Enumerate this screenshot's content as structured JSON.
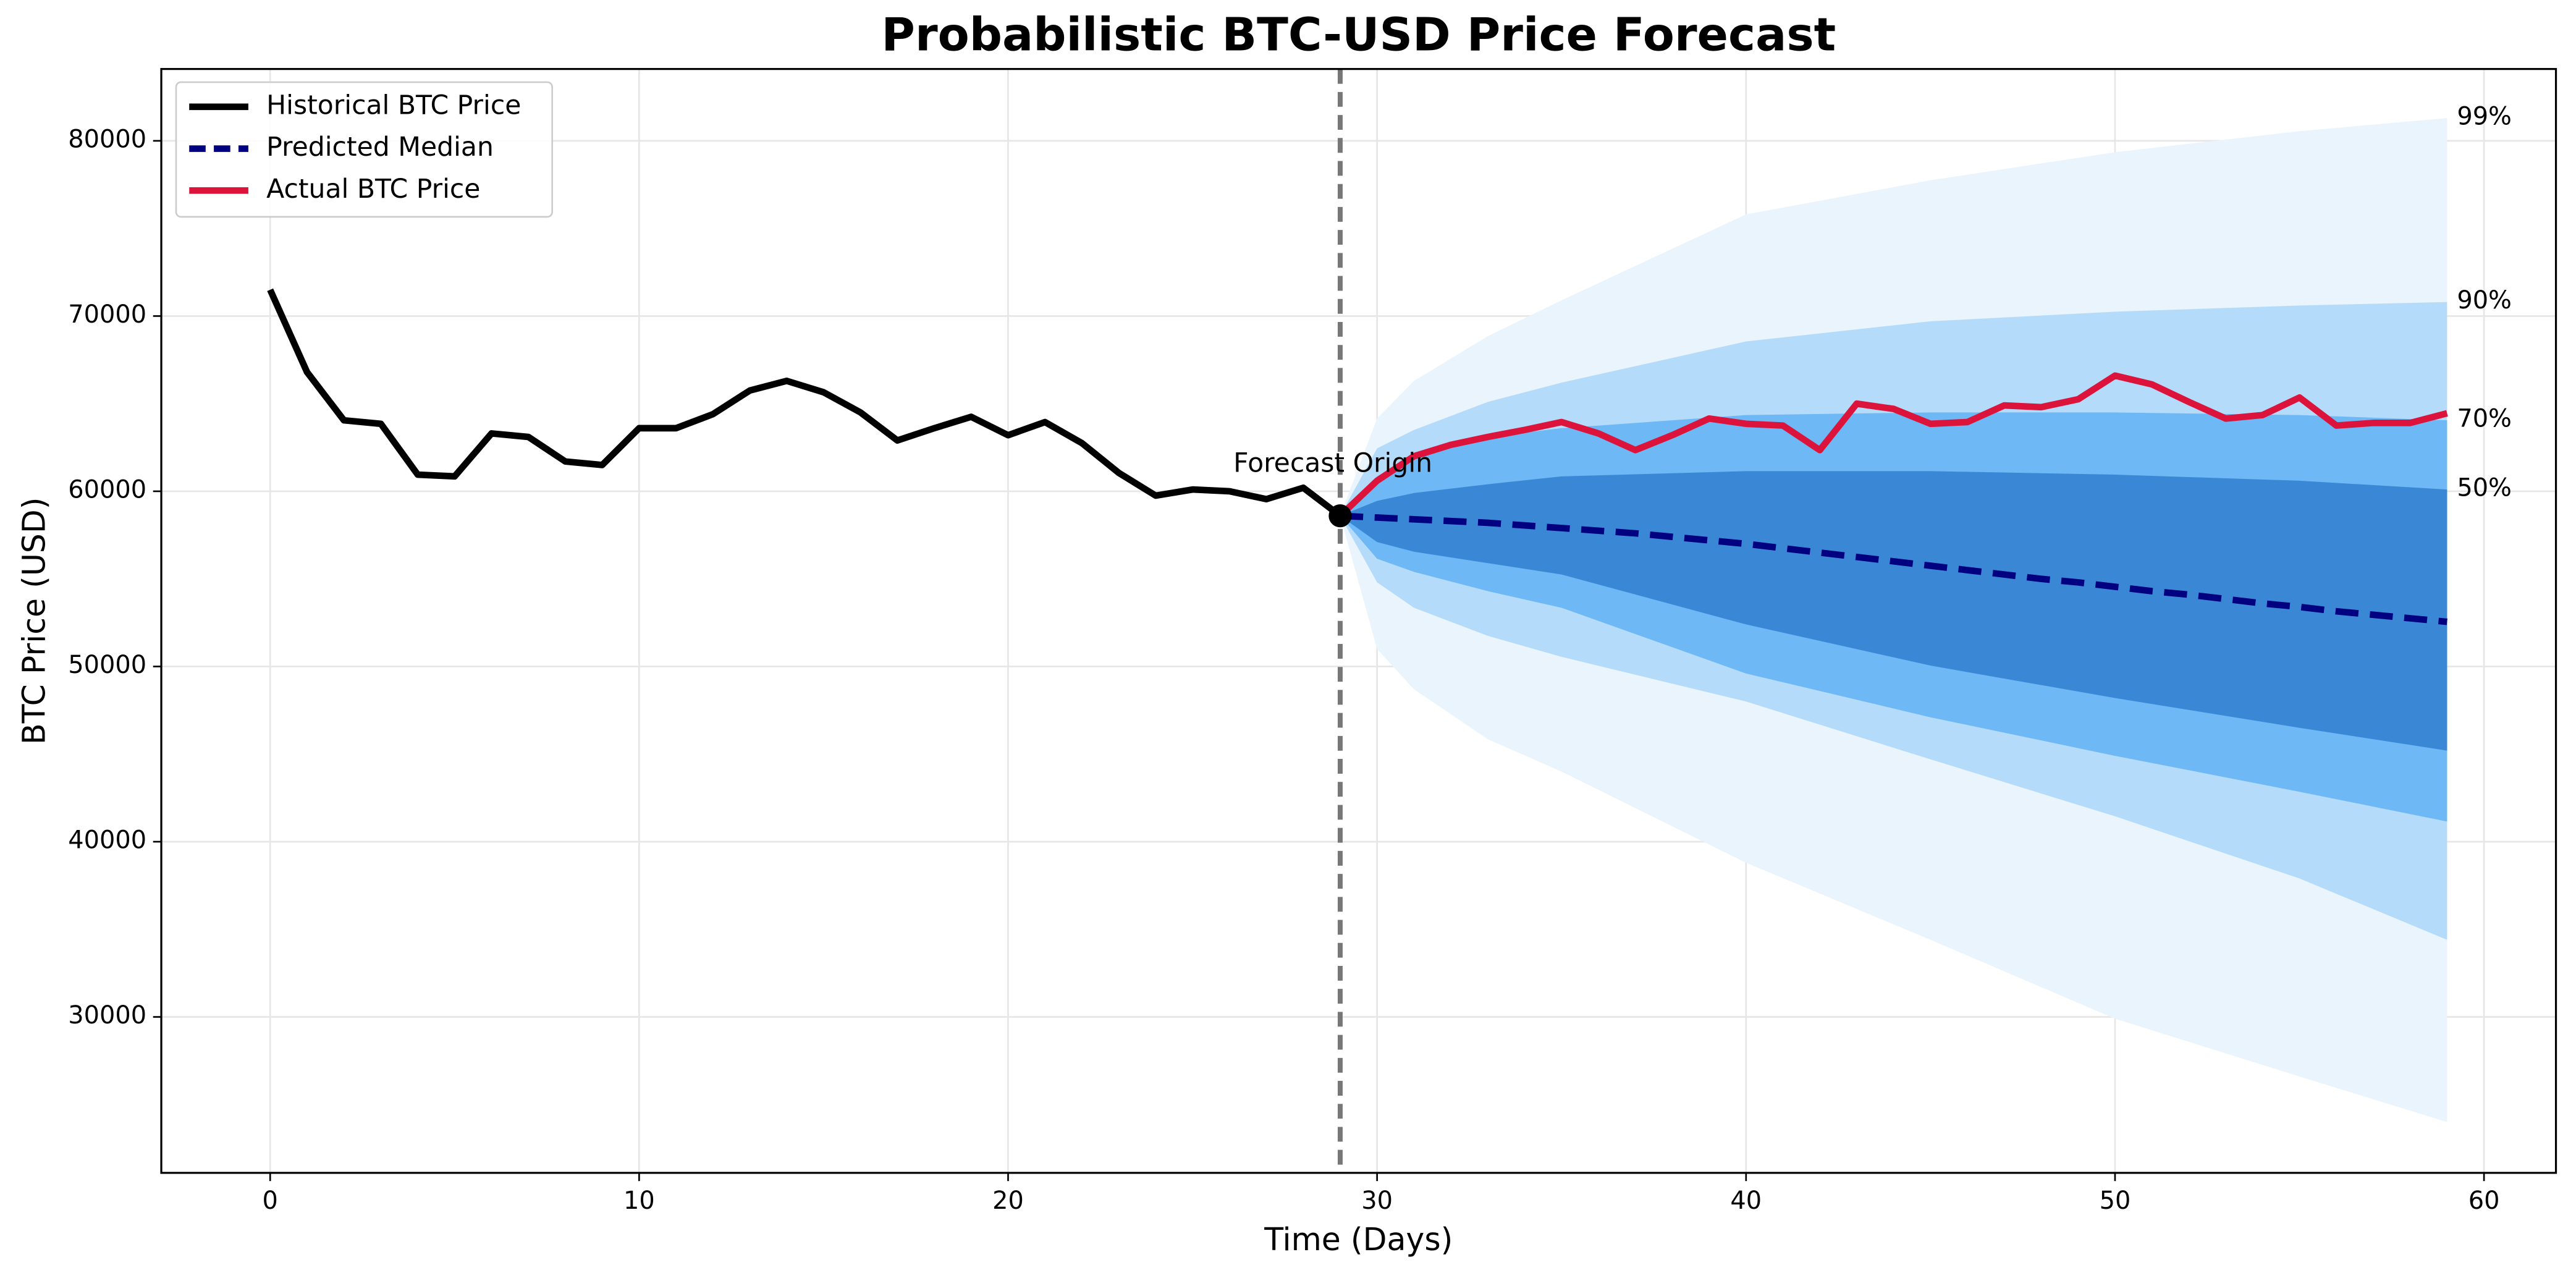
{
  "chart_data": {
    "type": "fan",
    "title": "Probabilistic BTC-USD Price Forecast",
    "x_label": "Time (Days)",
    "y_label": "BTC Price (USD)",
    "xlim": [
      -2.95,
      61.95
    ],
    "ylim": [
      21100,
      84100
    ],
    "xticks": [
      0,
      10,
      20,
      30,
      40,
      50,
      60
    ],
    "yticks": [
      30000,
      40000,
      50000,
      60000,
      70000,
      80000
    ],
    "grid": true,
    "legend": "upper left",
    "origin_x": 29,
    "annotation": "Forecast Origin",
    "series": [
      {
        "name": "Historical BTC Price",
        "color": "#000000",
        "dash": false,
        "x": [
          0,
          1,
          2,
          3,
          4,
          5,
          6,
          7,
          8,
          9,
          10,
          11,
          12,
          13,
          14,
          15,
          16,
          17,
          18,
          19,
          20,
          21,
          22,
          23,
          24,
          25,
          26,
          27,
          28,
          29
        ],
        "values": [
          71500,
          66800,
          64050,
          63850,
          60950,
          60850,
          63300,
          63100,
          61700,
          61500,
          63600,
          63600,
          64400,
          65750,
          66300,
          65650,
          64500,
          62900,
          63600,
          64250,
          63200,
          63950,
          62750,
          61050,
          59750,
          60100,
          60000,
          59550,
          60200,
          58600
        ]
      },
      {
        "name": "Predicted Median",
        "color": "#000080",
        "dash": true,
        "x": [
          29,
          30,
          31,
          32,
          33,
          34,
          35,
          36,
          37,
          38,
          39,
          40,
          41,
          42,
          43,
          44,
          45,
          46,
          47,
          48,
          49,
          50,
          51,
          52,
          53,
          54,
          55,
          56,
          57,
          58,
          59
        ],
        "values": [
          58600,
          58500,
          58400,
          58300,
          58200,
          58050,
          57900,
          57750,
          57600,
          57400,
          57200,
          57000,
          56750,
          56500,
          56250,
          56000,
          55750,
          55500,
          55250,
          55000,
          54800,
          54550,
          54300,
          54100,
          53850,
          53600,
          53400,
          53150,
          52950,
          52750,
          52550
        ]
      },
      {
        "name": "Actual BTC Price",
        "color": "#dc143c",
        "dash": false,
        "x": [
          29,
          30,
          31,
          32,
          33,
          34,
          35,
          36,
          37,
          38,
          39,
          40,
          41,
          42,
          43,
          44,
          45,
          46,
          47,
          48,
          49,
          50,
          51,
          52,
          53,
          54,
          55,
          56,
          57,
          58,
          59
        ],
        "values": [
          58600,
          60600,
          62000,
          62650,
          63100,
          63500,
          63950,
          63300,
          62350,
          63200,
          64150,
          63850,
          63750,
          62350,
          65000,
          64700,
          63850,
          63950,
          64900,
          64800,
          65250,
          66600,
          66100,
          65100,
          64150,
          64350,
          65350,
          63750,
          63900,
          63900,
          64450
        ]
      }
    ],
    "bands": [
      {
        "label": "99%",
        "color": "#eaf4fd",
        "x": [
          29,
          30,
          31,
          33,
          35,
          40,
          45,
          50,
          55,
          59
        ],
        "upper": [
          58600,
          64150,
          66300,
          68850,
          70900,
          75800,
          77750,
          79350,
          80550,
          81300
        ],
        "lower": [
          58600,
          51000,
          48700,
          45850,
          44000,
          38800,
          34400,
          29900,
          26600,
          24000
        ]
      },
      {
        "label": "90%",
        "color": "#b5dbfa",
        "x": [
          29,
          30,
          31,
          33,
          35,
          40,
          45,
          50,
          55,
          59
        ],
        "upper": [
          58600,
          62450,
          63500,
          65100,
          66200,
          68550,
          69700,
          70250,
          70600,
          70800
        ],
        "lower": [
          58600,
          54800,
          53350,
          51750,
          50550,
          48000,
          44700,
          41450,
          37900,
          34400
        ]
      },
      {
        "label": "70%",
        "color": "#6eb8f5",
        "x": [
          29,
          30,
          31,
          33,
          35,
          40,
          45,
          50,
          55,
          59
        ],
        "upper": [
          58600,
          60850,
          62000,
          63100,
          63600,
          64350,
          64500,
          64500,
          64350,
          64050
        ],
        "lower": [
          58600,
          56150,
          55400,
          54300,
          53350,
          49600,
          47100,
          44900,
          42850,
          41150
        ]
      },
      {
        "label": "50%",
        "color": "#3a87d5",
        "x": [
          29,
          30,
          31,
          33,
          35,
          40,
          45,
          50,
          55,
          59
        ],
        "upper": [
          58600,
          59450,
          59900,
          60400,
          60850,
          61150,
          61150,
          60950,
          60600,
          60100
        ],
        "lower": [
          58600,
          57100,
          56550,
          55900,
          55250,
          52400,
          50050,
          48200,
          46500,
          45200
        ]
      }
    ]
  }
}
